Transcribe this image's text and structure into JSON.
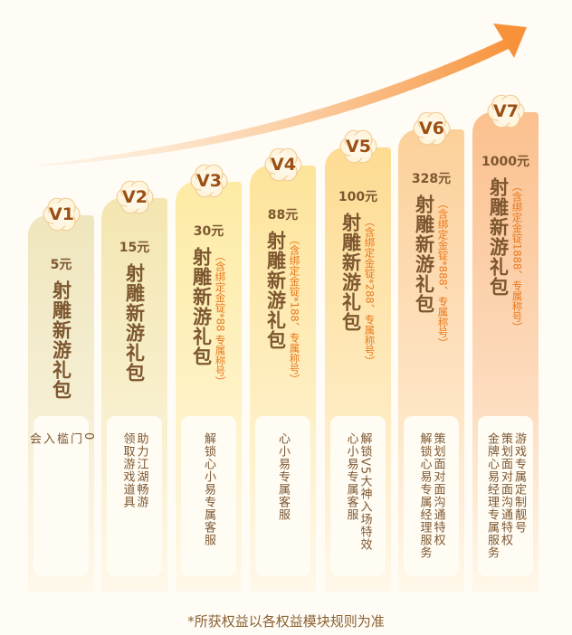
{
  "levels": [
    {
      "level": "V1",
      "price": "5元",
      "title": "射雕新游礼包",
      "note": "",
      "benefit": "0\n门\n槛\n入\n会",
      "color": "#efe6bd"
    },
    {
      "level": "V2",
      "price": "15元",
      "title": "射雕新游礼包",
      "note": "",
      "benefit": "助力江湖畅游\n领取游戏道具",
      "color": "#f3e6b0"
    },
    {
      "level": "V3",
      "price": "30元",
      "title": "射雕新游礼包",
      "note": "（含绑定金锭*88 专属称号）",
      "benefit": "解锁心小易专属客服",
      "color": "#fdeba4"
    },
    {
      "level": "V4",
      "price": "88元",
      "title": "射雕新游礼包",
      "note": "（含绑定金锭*188、专属称号）",
      "benefit": "心小易专属客服",
      "color": "#fde49a"
    },
    {
      "level": "V5",
      "price": "100元",
      "title": "射雕新游礼包",
      "note": "（含绑定金锭*288、专属称号）",
      "benefit": "解锁V5大神入场特效\n心小易专属客服",
      "color": "#fddc92"
    },
    {
      "level": "V6",
      "price": "328元",
      "title": "射雕新游礼包",
      "note": "（含绑定金锭*888、专属称号）",
      "benefit": "策划面对面沟通特权\n解锁心易专属经理服务",
      "color": "#fcd09a"
    },
    {
      "level": "V7",
      "price": "1000元",
      "title": "射雕新游礼包",
      "note": "（含绑定金锭1888、专属称号）",
      "benefit": "游戏专属定制靓号\n策划面对面沟通特权\n金牌心易经理专属服务",
      "color": "#fbc08e"
    }
  ],
  "footer": "*所获权益以各权益模块规则为准",
  "colors": {
    "accent": "#f7923a",
    "text": "#7d5730",
    "note": "#e8781e"
  }
}
